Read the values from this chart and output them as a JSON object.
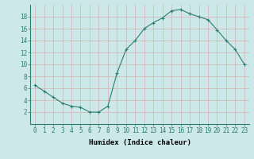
{
  "x": [
    0,
    1,
    2,
    3,
    4,
    5,
    6,
    7,
    8,
    9,
    10,
    11,
    12,
    13,
    14,
    15,
    16,
    17,
    18,
    19,
    20,
    21,
    22,
    23
  ],
  "y": [
    6.5,
    5.5,
    4.5,
    3.5,
    3.0,
    2.8,
    2.0,
    2.0,
    3.0,
    8.5,
    12.5,
    14.0,
    16.0,
    17.0,
    17.8,
    19.0,
    19.2,
    18.5,
    18.0,
    17.5,
    15.8,
    14.0,
    12.5,
    10.0
  ],
  "line_color": "#2e7d6e",
  "marker_color": "#2e7d6e",
  "bg_color": "#cce8e8",
  "grid_color": "#b0d8d8",
  "xlabel": "Humidex (Indice chaleur)",
  "xlim": [
    -0.5,
    23.5
  ],
  "ylim": [
    0,
    20
  ],
  "yticks": [
    2,
    4,
    6,
    8,
    10,
    12,
    14,
    16,
    18
  ],
  "xticks": [
    0,
    1,
    2,
    3,
    4,
    5,
    6,
    7,
    8,
    9,
    10,
    11,
    12,
    13,
    14,
    15,
    16,
    17,
    18,
    19,
    20,
    21,
    22,
    23
  ],
  "label_fontsize": 6.5,
  "tick_fontsize": 5.5
}
